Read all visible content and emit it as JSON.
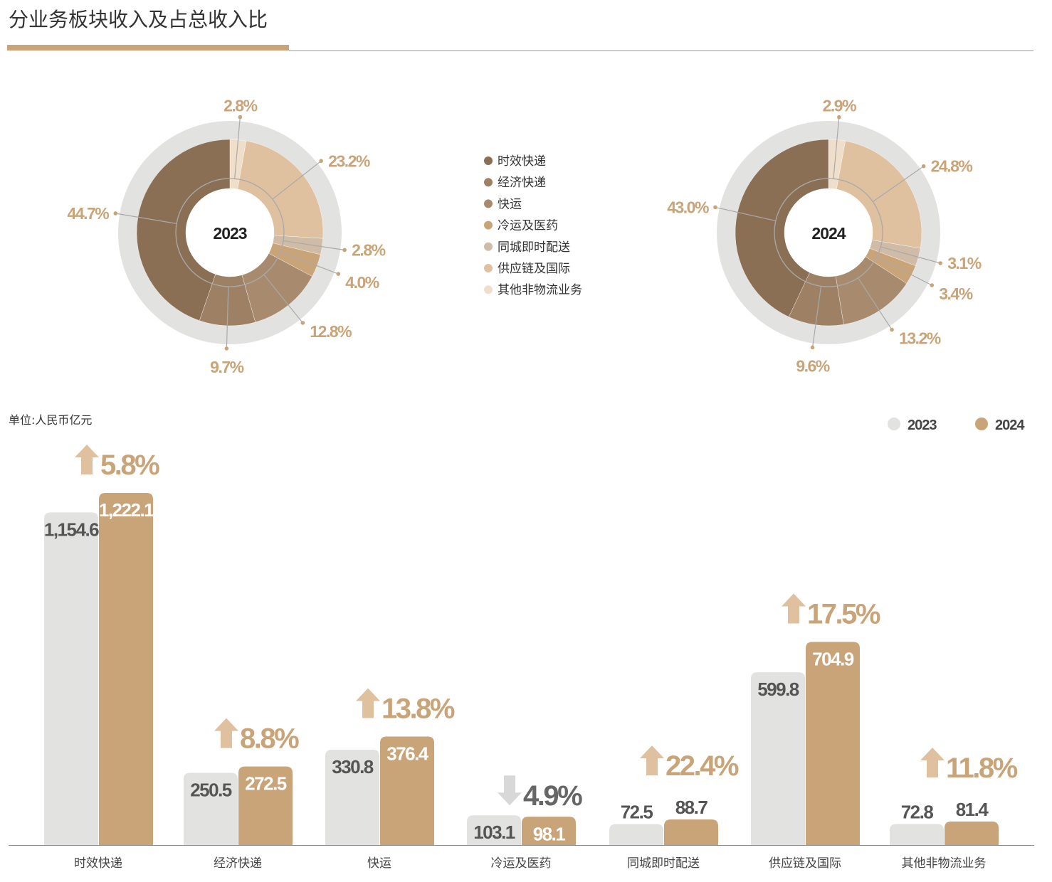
{
  "title": "分业务板块收入及占总收入比",
  "unit": "单位:人民币亿元",
  "colors": {
    "accent": "#c9a478",
    "gray_bar": "#e2e2e1",
    "ring": "#e2e2e1",
    "segments": [
      "#8b6f55",
      "#9e8065",
      "#a88b6e",
      "#c9a478",
      "#d0bba6",
      "#dfc1a0",
      "#efdeca"
    ]
  },
  "legend": {
    "items": [
      "时效快递",
      "经济快递",
      "快运",
      "冷运及医药",
      "同城即时配送",
      "供应链及国际",
      "其他非物流业务"
    ],
    "years": [
      "2023",
      "2024"
    ]
  },
  "chart_data": [
    {
      "type": "pie",
      "title": "2023",
      "categories": [
        "时效快递",
        "经济快递",
        "快运",
        "冷运及医药",
        "同城即时配送",
        "供应链及国际",
        "其他非物流业务"
      ],
      "values": [
        44.7,
        9.7,
        12.8,
        4.0,
        2.8,
        23.2,
        2.8
      ],
      "labels": [
        "44.7%",
        "9.7%",
        "12.8%",
        "4.0%",
        "2.8%",
        "23.2%",
        "2.8%"
      ]
    },
    {
      "type": "pie",
      "title": "2024",
      "categories": [
        "时效快递",
        "经济快递",
        "快运",
        "冷运及医药",
        "同城即时配送",
        "供应链及国际",
        "其他非物流业务"
      ],
      "values": [
        43.0,
        9.6,
        13.2,
        3.4,
        3.1,
        24.8,
        2.9
      ],
      "labels": [
        "43.0%",
        "9.6%",
        "13.2%",
        "3.4%",
        "3.1%",
        "24.8%",
        "2.9%"
      ]
    },
    {
      "type": "bar",
      "ylabel": "人民币亿元",
      "categories": [
        "时效快递",
        "经济快递",
        "快运",
        "冷运及医药",
        "同城即时配送",
        "供应链及国际",
        "其他非物流业务"
      ],
      "series": [
        {
          "name": "2023",
          "values": [
            1154.6,
            250.5,
            330.8,
            103.1,
            72.5,
            599.8,
            72.8
          ],
          "labels": [
            "1,154.6",
            "250.5",
            "330.8",
            "103.1",
            "72.5",
            "599.8",
            "72.8"
          ]
        },
        {
          "name": "2024",
          "values": [
            1222.1,
            272.5,
            376.4,
            98.1,
            88.7,
            704.9,
            81.4
          ],
          "labels": [
            "1,222.1",
            "272.5",
            "376.4",
            "98.1",
            "88.7",
            "704.9",
            "81.4"
          ]
        }
      ],
      "growth": [
        {
          "label": "5.8%",
          "direction": "up"
        },
        {
          "label": "8.8%",
          "direction": "up"
        },
        {
          "label": "13.8%",
          "direction": "up"
        },
        {
          "label": "4.9%",
          "direction": "down"
        },
        {
          "label": "22.4%",
          "direction": "up"
        },
        {
          "label": "17.5%",
          "direction": "up"
        },
        {
          "label": "11.8%",
          "direction": "up"
        }
      ]
    }
  ]
}
